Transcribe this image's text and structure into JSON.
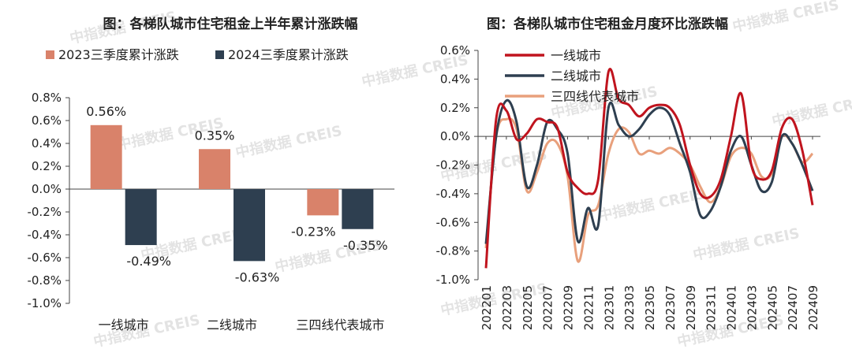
{
  "watermark": "中指数据 CREIS",
  "charts": [
    {
      "type": "bar",
      "title": "图：各梯队城市住宅租金上半年累计涨跌幅",
      "categories": [
        "一线城市",
        "二线城市",
        "三四线代表城市"
      ],
      "series": [
        {
          "name": "2023三季度累计涨跌",
          "color": "#D9826A",
          "values": [
            0.56,
            0.35,
            -0.23
          ],
          "labels": [
            "0.56%",
            "0.35%",
            "-0.23%"
          ]
        },
        {
          "name": "2024三季度累计涨跌",
          "color": "#2E3F50",
          "values": [
            -0.49,
            -0.63,
            -0.35
          ],
          "labels": [
            "-0.49%",
            "-0.63%",
            "-0.35%"
          ]
        }
      ],
      "ylim": [
        -1.0,
        0.8
      ],
      "yticks": [
        0.8,
        0.6,
        0.4,
        0.2,
        0.0,
        -0.2,
        -0.4,
        -0.6,
        -0.8,
        -1.0
      ],
      "ytick_labels": [
        "0.8%",
        "0.6%",
        "0.4%",
        "0.2%",
        "0.0%",
        "-0.2%",
        "-0.4%",
        "-0.6%",
        "-0.8%",
        "-1.0%"
      ],
      "legend": "top",
      "grid": false
    },
    {
      "type": "line",
      "title": "图：各梯队城市住宅租金月度环比涨跌幅",
      "x": [
        "202201",
        "202202",
        "202203",
        "202204",
        "202205",
        "202206",
        "202207",
        "202208",
        "202209",
        "202210",
        "202211",
        "202212",
        "202301",
        "202302",
        "202303",
        "202304",
        "202305",
        "202306",
        "202307",
        "202308",
        "202309",
        "202310",
        "202311",
        "202312",
        "202401",
        "202402",
        "202403",
        "202404",
        "202405",
        "202406",
        "202407",
        "202408",
        "202409"
      ],
      "xtick_labels": [
        "202201",
        "202203",
        "202205",
        "202207",
        "202209",
        "202211",
        "202301",
        "202303",
        "202305",
        "202307",
        "202309",
        "202311",
        "202401",
        "202403",
        "202405",
        "202407",
        "202409"
      ],
      "series": [
        {
          "name": "一线城市",
          "color": "#C0141E",
          "values": [
            -0.92,
            0.12,
            0.18,
            -0.02,
            0.02,
            0.12,
            0.1,
            0.06,
            -0.25,
            -0.36,
            -0.4,
            -0.3,
            0.45,
            0.26,
            0.22,
            0.14,
            0.2,
            0.22,
            0.2,
            0.08,
            -0.2,
            -0.4,
            -0.42,
            -0.3,
            0.0,
            0.3,
            -0.2,
            -0.3,
            -0.24,
            0.06,
            0.12,
            -0.1,
            -0.48
          ]
        },
        {
          "name": "二线城市",
          "color": "#2E3F50",
          "values": [
            -0.75,
            0.0,
            0.25,
            0.1,
            -0.35,
            -0.2,
            0.1,
            0.05,
            -0.12,
            -0.73,
            -0.5,
            -0.62,
            0.2,
            0.08,
            0.0,
            0.05,
            0.15,
            0.2,
            0.15,
            -0.05,
            -0.25,
            -0.55,
            -0.52,
            -0.35,
            -0.1,
            0.0,
            -0.2,
            -0.38,
            -0.32,
            0.0,
            -0.05,
            -0.2,
            -0.38
          ]
        },
        {
          "name": "三四线代表城市",
          "color": "#E8A07C",
          "values": [
            -0.78,
            0.0,
            0.12,
            0.05,
            -0.38,
            -0.25,
            -0.05,
            -0.05,
            -0.28,
            -0.87,
            -0.55,
            -0.48,
            -0.12,
            0.05,
            0.03,
            -0.12,
            -0.1,
            -0.12,
            -0.08,
            -0.12,
            -0.2,
            -0.35,
            -0.46,
            -0.35,
            -0.14,
            -0.08,
            -0.12,
            -0.28,
            -0.26,
            0.0,
            -0.05,
            -0.18,
            -0.12
          ]
        }
      ],
      "ylim": [
        -1.0,
        0.6
      ],
      "yticks": [
        0.6,
        0.4,
        0.2,
        0.0,
        -0.2,
        -0.4,
        -0.6,
        -0.8,
        -1.0
      ],
      "ytick_labels": [
        "0.6%",
        "0.4%",
        "0.2%",
        "0.0%",
        "-0.2%",
        "-0.4%",
        "-0.6%",
        "-0.8%",
        "-1.0%"
      ],
      "legend": "top-left",
      "grid": false
    }
  ]
}
